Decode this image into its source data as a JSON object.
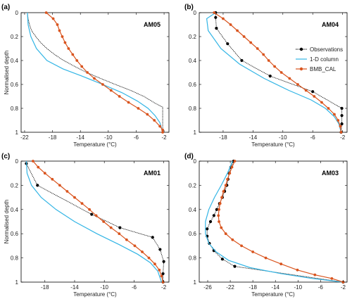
{
  "colors": {
    "obs": "#000000",
    "column": "#33b5e5",
    "bmb": "#d9541e",
    "axis": "#000000"
  },
  "legend": {
    "entries": [
      "Observations",
      "1-D column",
      "BMB_CAL"
    ]
  },
  "chart_data": [
    {
      "type": "line",
      "letter": "(a)",
      "station": "AM05",
      "xlabel": "Temperature (°C)",
      "ylabel": "Normalised depth",
      "xlim": [
        -22.5,
        -1.3
      ],
      "ylim": [
        0,
        1
      ],
      "yreverse": true,
      "xticks": [
        -22,
        -18,
        -14,
        -10,
        -6,
        -2
      ],
      "yticks": [
        0,
        0.2,
        0.4,
        0.6,
        0.8,
        1
      ],
      "series": [
        {
          "name": "Observations",
          "style": "obs",
          "markers": false,
          "points": [
            [
              -21.6,
              0.0
            ],
            [
              -21.5,
              0.05
            ],
            [
              -21.3,
              0.1
            ],
            [
              -21.0,
              0.15
            ],
            [
              -20.4,
              0.2
            ],
            [
              -19.7,
              0.25
            ],
            [
              -18.8,
              0.3
            ],
            [
              -17.7,
              0.35
            ],
            [
              -16.4,
              0.4
            ],
            [
              -14.8,
              0.45
            ],
            [
              -13.1,
              0.5
            ],
            [
              -11.1,
              0.55
            ],
            [
              -9.0,
              0.6
            ],
            [
              -6.8,
              0.65
            ],
            [
              -4.9,
              0.7
            ],
            [
              -3.5,
              0.75
            ],
            [
              -2.2,
              0.79
            ],
            [
              -2.2,
              0.85
            ],
            [
              -2.2,
              0.9
            ],
            [
              -2.2,
              1.0
            ]
          ]
        },
        {
          "name": "1-D column",
          "style": "column",
          "markers": false,
          "points": [
            [
              -21.6,
              0.0
            ],
            [
              -21.5,
              0.1
            ],
            [
              -21.1,
              0.2
            ],
            [
              -20.3,
              0.3
            ],
            [
              -18.8,
              0.4
            ],
            [
              -16.5,
              0.47
            ],
            [
              -13.8,
              0.53
            ],
            [
              -10.8,
              0.6
            ],
            [
              -8.0,
              0.67
            ],
            [
              -5.8,
              0.74
            ],
            [
              -4.3,
              0.8
            ],
            [
              -3.3,
              0.86
            ],
            [
              -2.6,
              0.92
            ],
            [
              -2.2,
              1.0
            ]
          ]
        },
        {
          "name": "BMB_CAL",
          "style": "bmb",
          "markers": true,
          "points": [
            [
              -18.9,
              0.0
            ],
            [
              -17.9,
              0.05
            ],
            [
              -17.3,
              0.1
            ],
            [
              -17.0,
              0.15
            ],
            [
              -16.6,
              0.2
            ],
            [
              -16.2,
              0.25
            ],
            [
              -15.7,
              0.3
            ],
            [
              -15.1,
              0.35
            ],
            [
              -14.5,
              0.4
            ],
            [
              -13.8,
              0.45
            ],
            [
              -13.0,
              0.5
            ],
            [
              -12.0,
              0.55
            ],
            [
              -10.8,
              0.6
            ],
            [
              -9.6,
              0.65
            ],
            [
              -8.4,
              0.7
            ],
            [
              -7.1,
              0.75
            ],
            [
              -5.7,
              0.8
            ],
            [
              -4.4,
              0.85
            ],
            [
              -3.4,
              0.9
            ],
            [
              -2.6,
              0.95
            ],
            [
              -2.2,
              0.98
            ],
            [
              -2.2,
              1.0
            ]
          ]
        }
      ]
    },
    {
      "type": "line",
      "letter": "(b)",
      "station": "AM04",
      "xlabel": "Temperature (°C)",
      "ylabel": "",
      "xlim": [
        -21.2,
        -1.4
      ],
      "ylim": [
        0,
        1
      ],
      "yreverse": true,
      "xticks": [
        -18,
        -14,
        -10,
        -6,
        -2
      ],
      "yticks": [
        0,
        0.2,
        0.4,
        0.6,
        0.8,
        1
      ],
      "series": [
        {
          "name": "Observations",
          "style": "obs",
          "markers": true,
          "points": [
            [
              -19.0,
              0.0
            ],
            [
              -19.0,
              0.04
            ],
            [
              -18.9,
              0.13
            ],
            [
              -17.4,
              0.26
            ],
            [
              -15.5,
              0.4
            ],
            [
              -11.7,
              0.53
            ],
            [
              -6.0,
              0.66
            ],
            [
              -2.1,
              0.8
            ],
            [
              -2.1,
              0.86
            ],
            [
              -2.1,
              0.93
            ],
            [
              -2.2,
              1.0
            ]
          ]
        },
        {
          "name": "1-D column",
          "style": "column",
          "markers": false,
          "points": [
            [
              -19.0,
              0.0
            ],
            [
              -20.2,
              0.05
            ],
            [
              -20.0,
              0.15
            ],
            [
              -18.3,
              0.3
            ],
            [
              -15.8,
              0.43
            ],
            [
              -12.5,
              0.55
            ],
            [
              -9.2,
              0.65
            ],
            [
              -6.2,
              0.73
            ],
            [
              -4.3,
              0.8
            ],
            [
              -3.1,
              0.87
            ],
            [
              -2.5,
              0.93
            ],
            [
              -2.2,
              1.0
            ]
          ]
        },
        {
          "name": "BMB_CAL",
          "style": "bmb",
          "markers": true,
          "points": [
            [
              -19.2,
              0.0
            ],
            [
              -18.0,
              0.05
            ],
            [
              -17.0,
              0.1
            ],
            [
              -16.1,
              0.15
            ],
            [
              -15.2,
              0.2
            ],
            [
              -14.3,
              0.25
            ],
            [
              -13.4,
              0.3
            ],
            [
              -12.6,
              0.35
            ],
            [
              -11.9,
              0.4
            ],
            [
              -11.1,
              0.45
            ],
            [
              -10.2,
              0.5
            ],
            [
              -9.1,
              0.55
            ],
            [
              -8.0,
              0.6
            ],
            [
              -6.9,
              0.65
            ],
            [
              -5.8,
              0.7
            ],
            [
              -4.8,
              0.75
            ],
            [
              -3.9,
              0.8
            ],
            [
              -3.1,
              0.85
            ],
            [
              -2.6,
              0.9
            ],
            [
              -2.3,
              0.95
            ],
            [
              -2.2,
              1.0
            ]
          ]
        }
      ]
    },
    {
      "type": "line",
      "letter": "(c)",
      "station": "AM01",
      "xlabel": "Temperature (°C)",
      "ylabel": "Normalised depth",
      "xlim": [
        -21.2,
        -1.3
      ],
      "ylim": [
        0,
        1
      ],
      "yreverse": true,
      "xticks": [
        -18,
        -14,
        -10,
        -6,
        -2
      ],
      "yticks": [
        0,
        0.2,
        0.4,
        0.6,
        0.8,
        1
      ],
      "series": [
        {
          "name": "Observations",
          "style": "obs",
          "markers": true,
          "points": [
            [
              -20.5,
              0.02
            ],
            [
              -19.0,
              0.2
            ],
            [
              -11.7,
              0.44
            ],
            [
              -7.9,
              0.55
            ],
            [
              -3.5,
              0.63
            ],
            [
              -2.5,
              0.73
            ],
            [
              -2.0,
              0.83
            ],
            [
              -2.1,
              0.93
            ],
            [
              -2.1,
              1.0
            ]
          ]
        },
        {
          "name": "1-D column",
          "style": "column",
          "markers": false,
          "points": [
            [
              -20.5,
              0.0
            ],
            [
              -20.4,
              0.1
            ],
            [
              -19.8,
              0.2
            ],
            [
              -18.5,
              0.3
            ],
            [
              -16.5,
              0.4
            ],
            [
              -14.0,
              0.5
            ],
            [
              -11.0,
              0.6
            ],
            [
              -8.0,
              0.69
            ],
            [
              -5.5,
              0.77
            ],
            [
              -3.8,
              0.84
            ],
            [
              -2.8,
              0.91
            ],
            [
              -2.3,
              1.0
            ]
          ]
        },
        {
          "name": "BMB_CAL",
          "style": "bmb",
          "markers": true,
          "points": [
            [
              -19.6,
              0.0
            ],
            [
              -18.9,
              0.05
            ],
            [
              -18.0,
              0.1
            ],
            [
              -17.0,
              0.15
            ],
            [
              -16.0,
              0.2
            ],
            [
              -15.0,
              0.25
            ],
            [
              -14.0,
              0.3
            ],
            [
              -13.0,
              0.35
            ],
            [
              -12.0,
              0.4
            ],
            [
              -11.1,
              0.45
            ],
            [
              -10.1,
              0.5
            ],
            [
              -9.1,
              0.55
            ],
            [
              -8.0,
              0.6
            ],
            [
              -7.0,
              0.65
            ],
            [
              -5.9,
              0.7
            ],
            [
              -4.9,
              0.75
            ],
            [
              -4.0,
              0.8
            ],
            [
              -3.2,
              0.85
            ],
            [
              -2.6,
              0.9
            ],
            [
              -2.3,
              0.95
            ],
            [
              -2.1,
              1.0
            ]
          ]
        }
      ]
    },
    {
      "type": "line",
      "letter": "(d)",
      "station": "AM03",
      "xlabel": "Temperature (°C)",
      "ylabel": "",
      "xlim": [
        -27.5,
        -1.3
      ],
      "ylim": [
        0,
        1
      ],
      "yreverse": true,
      "xticks": [
        -26,
        -22,
        -18,
        -14,
        -10,
        -6,
        -2
      ],
      "yticks": [
        0,
        0.2,
        0.4,
        0.6,
        0.8,
        1
      ],
      "series": [
        {
          "name": "Observations",
          "style": "obs",
          "markers": true,
          "points": [
            [
              -21.4,
              0.0
            ],
            [
              -21.9,
              0.05
            ],
            [
              -22.2,
              0.1
            ],
            [
              -22.4,
              0.15
            ],
            [
              -22.6,
              0.2
            ],
            [
              -23.0,
              0.25
            ],
            [
              -23.4,
              0.3
            ],
            [
              -23.9,
              0.35
            ],
            [
              -24.4,
              0.4
            ],
            [
              -24.9,
              0.45
            ],
            [
              -25.5,
              0.5
            ],
            [
              -26.1,
              0.56
            ],
            [
              -26.1,
              0.62
            ],
            [
              -25.7,
              0.68
            ],
            [
              -24.9,
              0.74
            ],
            [
              -23.4,
              0.81
            ],
            [
              -21.2,
              0.87
            ],
            [
              -2.0,
              1.0
            ]
          ]
        },
        {
          "name": "1-D column",
          "style": "column",
          "markers": false,
          "points": [
            [
              -21.6,
              0.0
            ],
            [
              -22.5,
              0.1
            ],
            [
              -23.6,
              0.2
            ],
            [
              -24.8,
              0.3
            ],
            [
              -25.8,
              0.4
            ],
            [
              -26.4,
              0.5
            ],
            [
              -26.4,
              0.6
            ],
            [
              -25.8,
              0.68
            ],
            [
              -24.5,
              0.75
            ],
            [
              -22.3,
              0.82
            ],
            [
              -18.5,
              0.88
            ],
            [
              -13.0,
              0.93
            ],
            [
              -7.5,
              0.97
            ],
            [
              -2.0,
              1.0
            ]
          ]
        },
        {
          "name": "BMB_CAL",
          "style": "bmb",
          "markers": true,
          "points": [
            [
              -21.2,
              0.0
            ],
            [
              -21.7,
              0.05
            ],
            [
              -22.1,
              0.1
            ],
            [
              -22.5,
              0.15
            ],
            [
              -22.8,
              0.2
            ],
            [
              -23.2,
              0.25
            ],
            [
              -23.5,
              0.3
            ],
            [
              -23.8,
              0.35
            ],
            [
              -24.0,
              0.4
            ],
            [
              -24.1,
              0.45
            ],
            [
              -24.0,
              0.5
            ],
            [
              -23.6,
              0.55
            ],
            [
              -22.8,
              0.6
            ],
            [
              -21.6,
              0.65
            ],
            [
              -20.0,
              0.7
            ],
            [
              -18.0,
              0.75
            ],
            [
              -15.7,
              0.8
            ],
            [
              -13.0,
              0.85
            ],
            [
              -10.1,
              0.9
            ],
            [
              -7.0,
              0.94
            ],
            [
              -4.0,
              0.97
            ],
            [
              -2.0,
              1.0
            ]
          ]
        }
      ]
    }
  ]
}
